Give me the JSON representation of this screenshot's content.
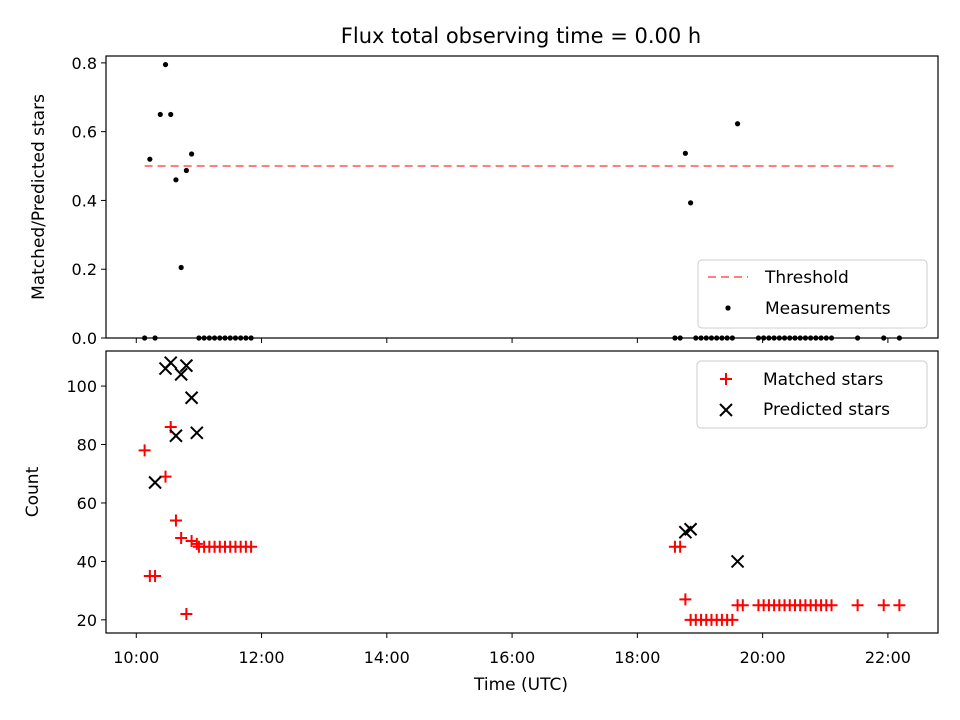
{
  "chart_data": [
    {
      "type": "scatter",
      "title": "Flux total observing time = 0.00 h",
      "xlabel": "",
      "ylabel": "Matched/Predicted stars",
      "xlim": [
        "09:31",
        "22:48"
      ],
      "ylim": [
        0,
        0.82
      ],
      "yticks": [
        "0.0",
        "0.2",
        "0.4",
        "0.6",
        "0.8"
      ],
      "grid": false,
      "legend_position": "bottom-right",
      "series": [
        {
          "name": "Threshold",
          "kind": "line",
          "style": "dashed",
          "color": "#ff7f7f",
          "x": [
            "10:08",
            "22:10"
          ],
          "y": [
            0.5,
            0.5
          ]
        },
        {
          "name": "Measurements",
          "kind": "scatter",
          "marker": "dot",
          "color": "#000000",
          "x": [
            "10:08",
            "10:13",
            "10:18",
            "10:23",
            "10:28",
            "10:33",
            "10:38",
            "10:43",
            "10:48",
            "10:53",
            "11:00",
            "11:05",
            "11:10",
            "11:15",
            "11:20",
            "11:25",
            "11:30",
            "11:35",
            "11:40",
            "11:45",
            "11:50",
            "18:36",
            "18:41",
            "18:46",
            "18:51",
            "18:56",
            "19:01",
            "19:06",
            "19:11",
            "19:16",
            "19:21",
            "19:26",
            "19:31",
            "19:36",
            "19:56",
            "20:01",
            "20:06",
            "20:11",
            "20:16",
            "20:21",
            "20:26",
            "20:31",
            "20:36",
            "20:41",
            "20:46",
            "20:51",
            "20:56",
            "21:01",
            "21:06",
            "21:31",
            "21:56",
            "22:11"
          ],
          "y": [
            0.0,
            0.52,
            0.0,
            0.65,
            0.795,
            0.65,
            0.46,
            0.205,
            0.487,
            0.535,
            0.0,
            0.0,
            0.0,
            0.0,
            0.0,
            0.0,
            0.0,
            0.0,
            0.0,
            0.0,
            0.0,
            0.0,
            0.0,
            0.537,
            0.393,
            0.0,
            0.0,
            0.0,
            0.0,
            0.0,
            0.0,
            0.0,
            0.0,
            0.623,
            0.0,
            0.0,
            0.0,
            0.0,
            0.0,
            0.0,
            0.0,
            0.0,
            0.0,
            0.0,
            0.0,
            0.0,
            0.0,
            0.0,
            0.0,
            0.0,
            0.0,
            0.0
          ]
        }
      ]
    },
    {
      "type": "scatter",
      "title": "",
      "xlabel": "Time (UTC)",
      "ylabel": "Count",
      "xlim": [
        "09:31",
        "22:48"
      ],
      "ylim": [
        15.5,
        112
      ],
      "xticks": [
        "10:00",
        "12:00",
        "14:00",
        "16:00",
        "18:00",
        "20:00",
        "22:00"
      ],
      "yticks": [
        "20",
        "40",
        "60",
        "80",
        "100"
      ],
      "grid": false,
      "legend_position": "top-right",
      "series": [
        {
          "name": "Matched stars",
          "kind": "scatter",
          "marker": "plus",
          "color": "#ff0000",
          "x": [
            "10:08",
            "10:13",
            "10:18",
            "10:28",
            "10:33",
            "10:38",
            "10:43",
            "10:48",
            "10:53",
            "10:58",
            "11:00",
            "11:05",
            "11:10",
            "11:15",
            "11:20",
            "11:25",
            "11:30",
            "11:35",
            "11:40",
            "11:45",
            "11:50",
            "18:36",
            "18:41",
            "18:46",
            "18:51",
            "18:56",
            "19:01",
            "19:06",
            "19:11",
            "19:16",
            "19:21",
            "19:26",
            "19:31",
            "19:36",
            "19:41",
            "19:56",
            "20:01",
            "20:06",
            "20:11",
            "20:16",
            "20:21",
            "20:26",
            "20:31",
            "20:36",
            "20:41",
            "20:46",
            "20:51",
            "20:56",
            "21:01",
            "21:06",
            "21:31",
            "21:56",
            "22:11"
          ],
          "y": [
            78,
            35,
            35,
            69,
            86,
            54,
            48,
            22,
            47,
            46,
            45,
            45,
            45,
            45,
            45,
            45,
            45,
            45,
            45,
            45,
            45,
            45,
            45,
            27,
            20,
            20,
            20,
            20,
            20,
            20,
            20,
            20,
            20,
            25,
            25,
            25,
            25,
            25,
            25,
            25,
            25,
            25,
            25,
            25,
            25,
            25,
            25,
            25,
            25,
            25,
            25,
            25,
            25
          ]
        },
        {
          "name": "Predicted stars",
          "kind": "scatter",
          "marker": "x",
          "color": "#000000",
          "x": [
            "10:18",
            "10:28",
            "10:33",
            "10:38",
            "10:43",
            "10:48",
            "10:53",
            "10:58",
            "18:46",
            "18:51",
            "19:36"
          ],
          "y": [
            67,
            106,
            108,
            83,
            104,
            107,
            96,
            84,
            50,
            51,
            40
          ]
        }
      ]
    }
  ]
}
